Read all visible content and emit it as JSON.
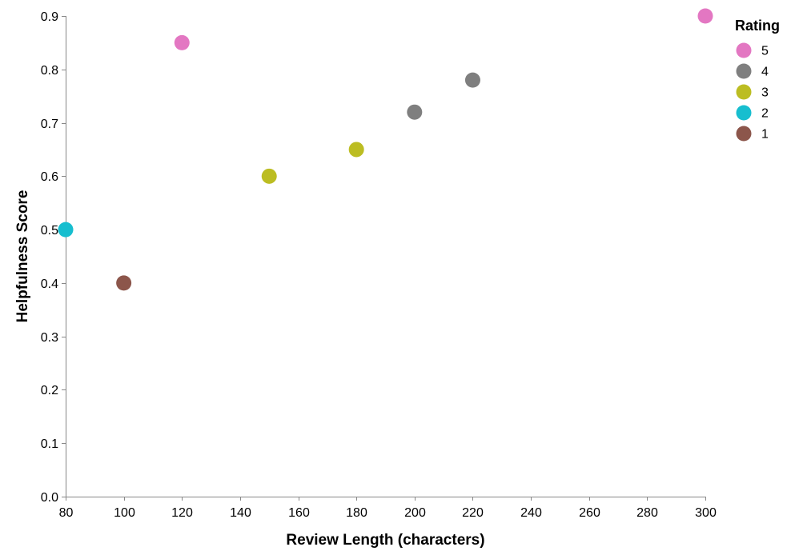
{
  "chart_data": {
    "type": "scatter",
    "xlabel": "Review Length (characters)",
    "ylabel": "Helpfulness Score",
    "xlim": [
      80,
      300
    ],
    "ylim": [
      0.0,
      0.9
    ],
    "x_ticks": [
      "80",
      "100",
      "120",
      "140",
      "160",
      "180",
      "200",
      "220",
      "240",
      "260",
      "280",
      "300"
    ],
    "y_ticks": [
      "0.0",
      "0.1",
      "0.2",
      "0.3",
      "0.4",
      "0.5",
      "0.6",
      "0.7",
      "0.8",
      "0.9"
    ],
    "grid": false,
    "legend": {
      "title": "Rating",
      "placement": "top-right",
      "entries": [
        {
          "label": "5",
          "color": "#e377c2"
        },
        {
          "label": "4",
          "color": "#7f7f7f"
        },
        {
          "label": "3",
          "color": "#bcbd22"
        },
        {
          "label": "2",
          "color": "#17becf"
        },
        {
          "label": "1",
          "color": "#8c564b"
        }
      ]
    },
    "points": [
      {
        "x": 80,
        "y": 0.5,
        "rating": "2"
      },
      {
        "x": 100,
        "y": 0.4,
        "rating": "1"
      },
      {
        "x": 120,
        "y": 0.85,
        "rating": "5"
      },
      {
        "x": 150,
        "y": 0.6,
        "rating": "3"
      },
      {
        "x": 180,
        "y": 0.65,
        "rating": "3"
      },
      {
        "x": 200,
        "y": 0.72,
        "rating": "4"
      },
      {
        "x": 220,
        "y": 0.78,
        "rating": "4"
      },
      {
        "x": 300,
        "y": 0.9,
        "rating": "5"
      }
    ]
  }
}
